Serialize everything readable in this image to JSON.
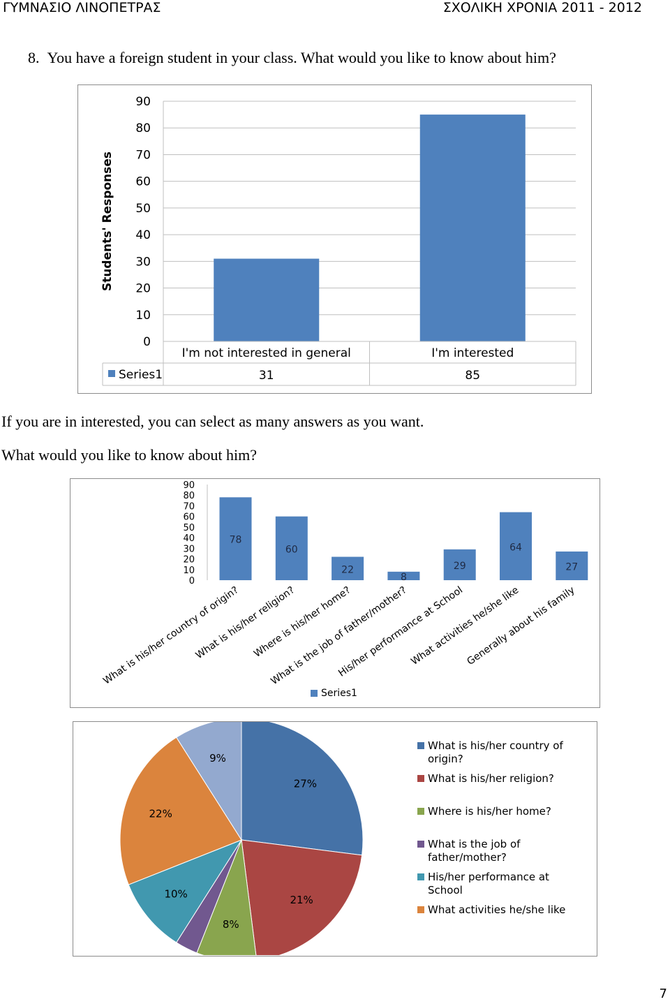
{
  "header": {
    "left": "ΓΥΜΝΑΣΙΟ ΛΙΝΟΠΕΤΡΑΣ",
    "right": "ΣΧΟΛΙΚΗ ΧΡΟΝΙΑ 2011 - 2012"
  },
  "question": {
    "number": "8.",
    "text": "You have a foreign student in your class. What would you like to know about him?"
  },
  "paragraph1": "If you are in interested, you can select as many answers as you want.",
  "paragraph2": "What would you like to know about him?",
  "page_number": "7",
  "colors": {
    "bar": "#4f81bd",
    "grid": "#bfbfbf",
    "frame": "#8c8c8c"
  },
  "chart_data": [
    {
      "type": "bar",
      "categories": [
        "I'm not interested in general",
        "I'm  interested"
      ],
      "series": [
        {
          "name": "Series1",
          "values": [
            31,
            85
          ]
        }
      ],
      "ylabel": "Students' Responses",
      "ylim": [
        0,
        90
      ],
      "yticks": [
        "0",
        "10",
        "20",
        "30",
        "40",
        "50",
        "60",
        "70",
        "80",
        "90"
      ],
      "data_table": true,
      "grid": true
    },
    {
      "type": "bar",
      "categories": [
        "What is his/her country of origin?",
        "What is his/her religion?",
        "Where is his/her home?",
        "What is the job of father/mother?",
        "His/her performance at School",
        "What activities he/she like",
        "Generally about his family"
      ],
      "series": [
        {
          "name": "Series1",
          "values": [
            78,
            60,
            22,
            8,
            29,
            64,
            27
          ]
        }
      ],
      "ylim": [
        0,
        90
      ],
      "yticks": [
        "0",
        "10",
        "20",
        "30",
        "40",
        "50",
        "60",
        "70",
        "80",
        "90"
      ],
      "legend": "bottom",
      "grid": false
    },
    {
      "type": "pie",
      "slices": [
        {
          "label": "What is his/her country of origin?",
          "value": 27,
          "text": "27%",
          "color": "#4572a7"
        },
        {
          "label": "What is his/her religion?",
          "value": 21,
          "text": "21%",
          "color": "#aa4643"
        },
        {
          "label": "Where is his/her home?",
          "value": 8,
          "text": "8%",
          "color": "#89a54e"
        },
        {
          "label": "What is the job of father/mother?",
          "value": 3,
          "text": "3%",
          "color": "#71588f"
        },
        {
          "label": "His/her performance at School",
          "value": 10,
          "text": "10%",
          "color": "#4198af"
        },
        {
          "label": "What activities he/she like",
          "value": 22,
          "text": "22%",
          "color": "#db843d"
        },
        {
          "label": "",
          "value": 9,
          "text": "9%",
          "color": "#93a9cf"
        }
      ],
      "legend": "right",
      "legend_lines": [
        [
          "What is his/her country of",
          "origin?"
        ],
        [
          "What is his/her religion?"
        ],
        [
          "Where is his/her home?"
        ],
        [
          "What is the job of",
          "father/mother?"
        ],
        [
          "His/her performance at",
          "School"
        ],
        [
          "What activities he/she like"
        ]
      ]
    }
  ]
}
